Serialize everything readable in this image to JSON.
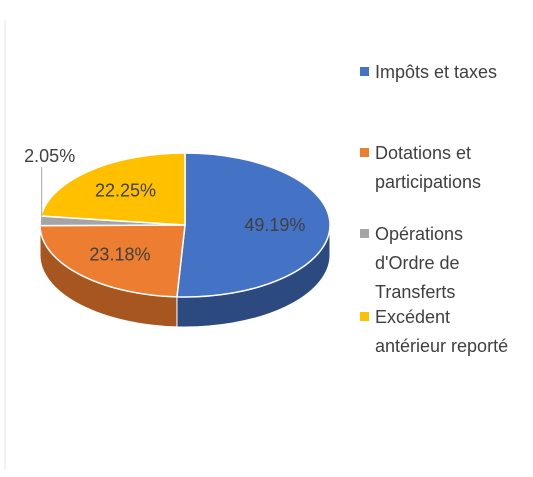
{
  "chart_data": {
    "type": "pie3d",
    "categories": [
      "Impôts et taxes",
      "Dotations et participations",
      "Opérations d'Ordre de Transferts",
      "Excédent antérieur reporté"
    ],
    "values": [
      49.19,
      23.18,
      2.05,
      22.25
    ],
    "value_labels": [
      "49.19%",
      "23.18%",
      "2.05%",
      "22.25%"
    ],
    "colors": [
      "#4472c4",
      "#ed7d31",
      "#a5a5a5",
      "#ffc000"
    ],
    "side_colors": [
      "#2c4a80",
      "#a8561f",
      "#707070",
      "#b38600"
    ],
    "legend": "right"
  }
}
